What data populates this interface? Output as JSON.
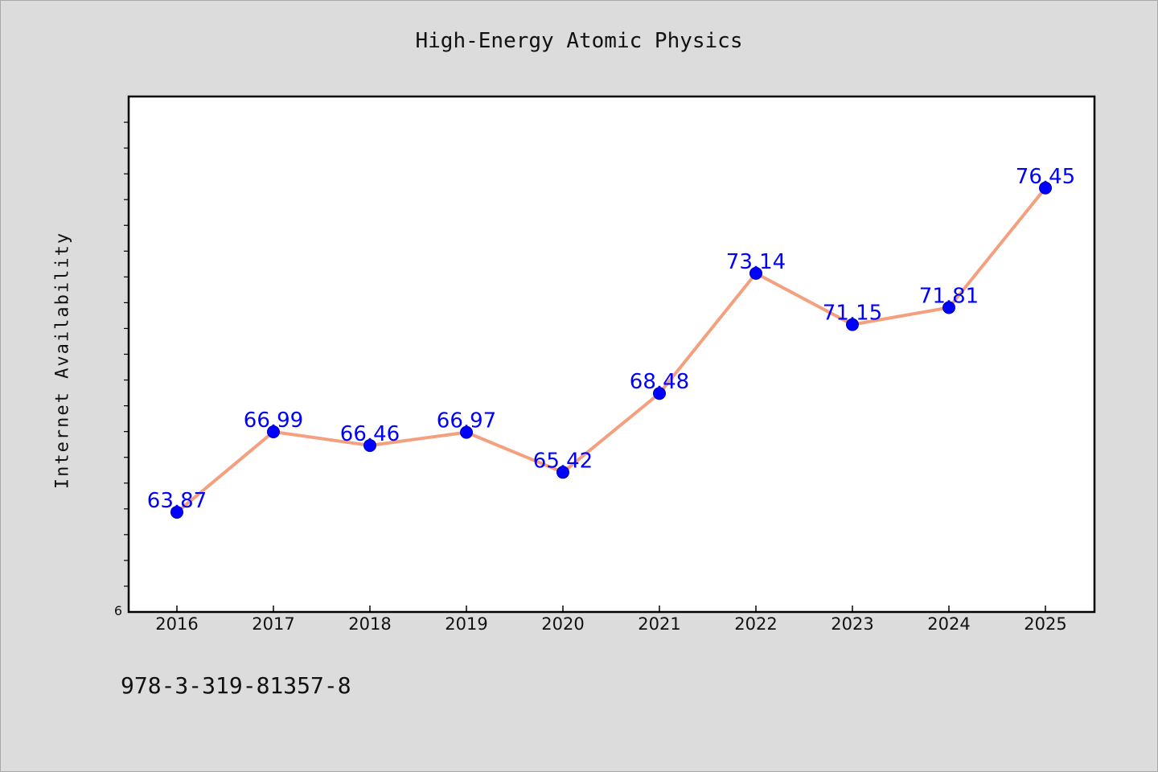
{
  "footnote": "978-3-319-81357-8",
  "chart_data": {
    "type": "line",
    "title": "High-Energy Atomic Physics",
    "xlabel": "",
    "ylabel": "Internet Availability",
    "categories": [
      "2016",
      "2017",
      "2018",
      "2019",
      "2020",
      "2021",
      "2022",
      "2023",
      "2024",
      "2025"
    ],
    "series": [
      {
        "values": [
          63.87,
          66.99,
          66.46,
          66.97,
          65.42,
          68.48,
          73.14,
          71.15,
          71.81,
          76.45
        ],
        "line_color": "#f4a07e",
        "marker_color": "#0000ff"
      }
    ],
    "data_labels": [
      "63.87",
      "66.99",
      "66.46",
      "66.97",
      "65.42",
      "68.48",
      "73.14",
      "71.15",
      "71.81",
      "76.45"
    ],
    "ylim": [
      60,
      80
    ],
    "y_tick_labels": [
      "6"
    ],
    "grid": false,
    "background_color": "#ffffff",
    "page_color": "#dcdcdc"
  }
}
